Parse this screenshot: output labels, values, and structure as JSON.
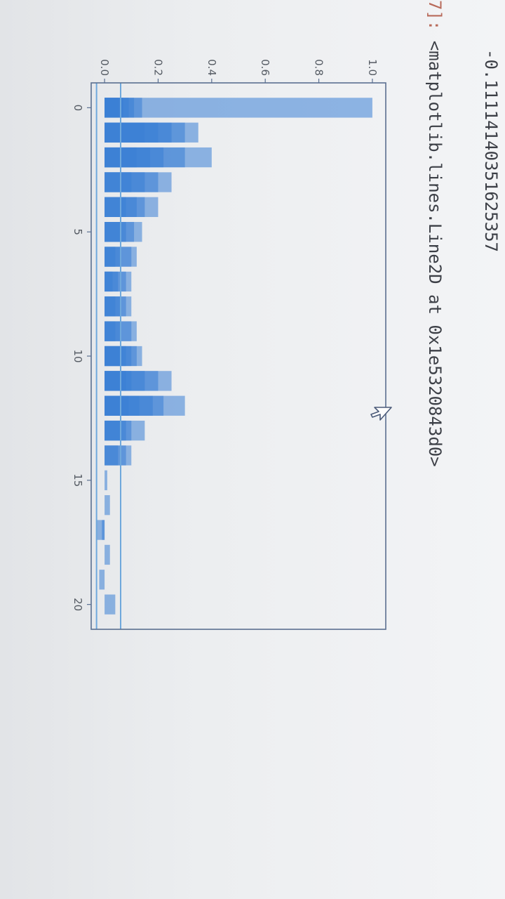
{
  "cell": {
    "output_value": "-0.11114140351625357",
    "prompt_label": "7]:",
    "output_repr": "<matplotlib.lines.Line2D at 0x1e5320843d0>"
  },
  "icons": {
    "cursor": "mouse-pointer-icon"
  },
  "colors": {
    "bar": "#3a7fd5",
    "line": "#6fa8dc",
    "axes": "#5a6f90"
  },
  "chart_data": {
    "type": "bar",
    "title": "",
    "xlabel": "",
    "ylabel": "",
    "xlim": [
      -1,
      21
    ],
    "ylim": [
      -0.05,
      1.05
    ],
    "xticks": [
      "0",
      "5",
      "10",
      "15",
      "20"
    ],
    "xtick_values": [
      0,
      5,
      10,
      15,
      20
    ],
    "yticks": [
      "0.0",
      "0.2",
      "0.4",
      "0.6",
      "0.8",
      "1.0"
    ],
    "ytick_values": [
      0.0,
      0.2,
      0.4,
      0.6,
      0.8,
      1.0
    ],
    "bars": [
      {
        "x": 0,
        "values": [
          1.0,
          0.14,
          0.11,
          0.09,
          0.07,
          0.05
        ]
      },
      {
        "x": 1,
        "values": [
          0.35,
          0.3,
          0.25,
          0.2,
          0.15
        ]
      },
      {
        "x": 2,
        "values": [
          0.4,
          0.3,
          0.22,
          0.17,
          0.12
        ]
      },
      {
        "x": 3,
        "values": [
          0.25,
          0.2,
          0.15,
          0.1
        ]
      },
      {
        "x": 4,
        "values": [
          0.2,
          0.15,
          0.12,
          0.08
        ]
      },
      {
        "x": 5,
        "values": [
          0.14,
          0.11,
          0.08,
          0.06
        ]
      },
      {
        "x": 6,
        "values": [
          0.12,
          0.1,
          0.06,
          0.04
        ]
      },
      {
        "x": 7,
        "values": [
          0.1,
          0.08,
          0.05,
          0.03
        ]
      },
      {
        "x": 8,
        "values": [
          0.1,
          0.08,
          0.06,
          0.04
        ]
      },
      {
        "x": 9,
        "values": [
          0.12,
          0.1,
          0.06,
          0.04
        ]
      },
      {
        "x": 10,
        "values": [
          0.14,
          0.12,
          0.1,
          0.08,
          0.06
        ]
      },
      {
        "x": 11,
        "values": [
          0.25,
          0.2,
          0.15,
          0.1,
          0.08
        ]
      },
      {
        "x": 12,
        "values": [
          0.3,
          0.22,
          0.18,
          0.13,
          0.09
        ]
      },
      {
        "x": 13,
        "values": [
          0.15,
          0.1,
          0.08,
          0.06
        ]
      },
      {
        "x": 14,
        "values": [
          0.1,
          0.08,
          0.05
        ]
      },
      {
        "x": 15,
        "values": [
          0.01
        ]
      },
      {
        "x": 16,
        "values": [
          0.02
        ]
      },
      {
        "x": 17,
        "values": [
          -0.01,
          -0.03
        ]
      },
      {
        "x": 18,
        "values": [
          0.02
        ]
      },
      {
        "x": 19,
        "values": [
          -0.02
        ]
      },
      {
        "x": 20,
        "values": [
          0.04
        ]
      }
    ],
    "hlines": [
      0.06,
      -0.03
    ],
    "grid": false,
    "legend": false
  }
}
